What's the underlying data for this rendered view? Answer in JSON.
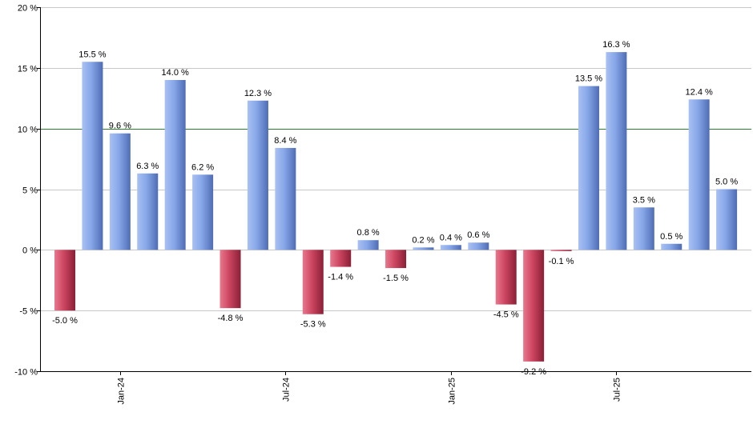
{
  "chart_data": {
    "type": "bar",
    "title": "",
    "xlabel": "",
    "ylabel": "",
    "ylim": [
      -10,
      20
    ],
    "yticks": [
      {
        "value": 20,
        "label": "20 %"
      },
      {
        "value": 15,
        "label": "15 %"
      },
      {
        "value": 10,
        "label": "10 %"
      },
      {
        "value": 5,
        "label": "5 %"
      },
      {
        "value": 0,
        "label": "0 %"
      },
      {
        "value": -5,
        "label": "-5 %"
      },
      {
        "value": -10,
        "label": "-10 %"
      }
    ],
    "grid": true,
    "reference_line": {
      "value": 10,
      "color": "#2e7d32"
    },
    "colors": {
      "positive": "#7f9fe0",
      "negative": "#c8405a",
      "grid": "#c8c8c8",
      "axis": "#000000"
    },
    "categories": [
      "2023-11",
      "2023-12",
      "2024-01",
      "2024-02",
      "2024-03",
      "2024-04",
      "2024-05",
      "2024-06",
      "2024-07",
      "2024-08",
      "2024-09",
      "2024-10",
      "2024-11",
      "2024-12",
      "2025-01",
      "2025-02",
      "2025-03",
      "2025-04",
      "2025-05",
      "2025-06",
      "2025-07",
      "2025-08",
      "2025-09",
      "2025-10",
      "2025-11"
    ],
    "values": [
      -5.0,
      15.5,
      9.6,
      6.3,
      14.0,
      6.2,
      -4.8,
      12.3,
      8.4,
      -5.3,
      -1.4,
      0.8,
      -1.5,
      0.2,
      0.4,
      0.6,
      -4.5,
      -9.2,
      -0.1,
      13.5,
      16.3,
      3.5,
      0.5,
      12.4,
      5.0
    ],
    "value_labels": [
      "-5.0 %",
      "15.5 %",
      "9.6 %",
      "6.3 %",
      "14.0 %",
      "6.2 %",
      "-4.8 %",
      "12.3 %",
      "8.4 %",
      "-5.3 %",
      "-1.4 %",
      "0.8 %",
      "-1.5 %",
      "0.2 %",
      "0.4 %",
      "0.6 %",
      "-4.5 %",
      "-9.2 %",
      "-0.1 %",
      "13.5 %",
      "16.3 %",
      "3.5 %",
      "0.5 %",
      "12.4 %",
      "5.0 %"
    ],
    "x_ticks": [
      {
        "index": 2,
        "label": "Jan-24"
      },
      {
        "index": 8,
        "label": "Jul-24"
      },
      {
        "index": 14,
        "label": "Jan-25"
      },
      {
        "index": 20,
        "label": "Jul-25"
      }
    ]
  }
}
